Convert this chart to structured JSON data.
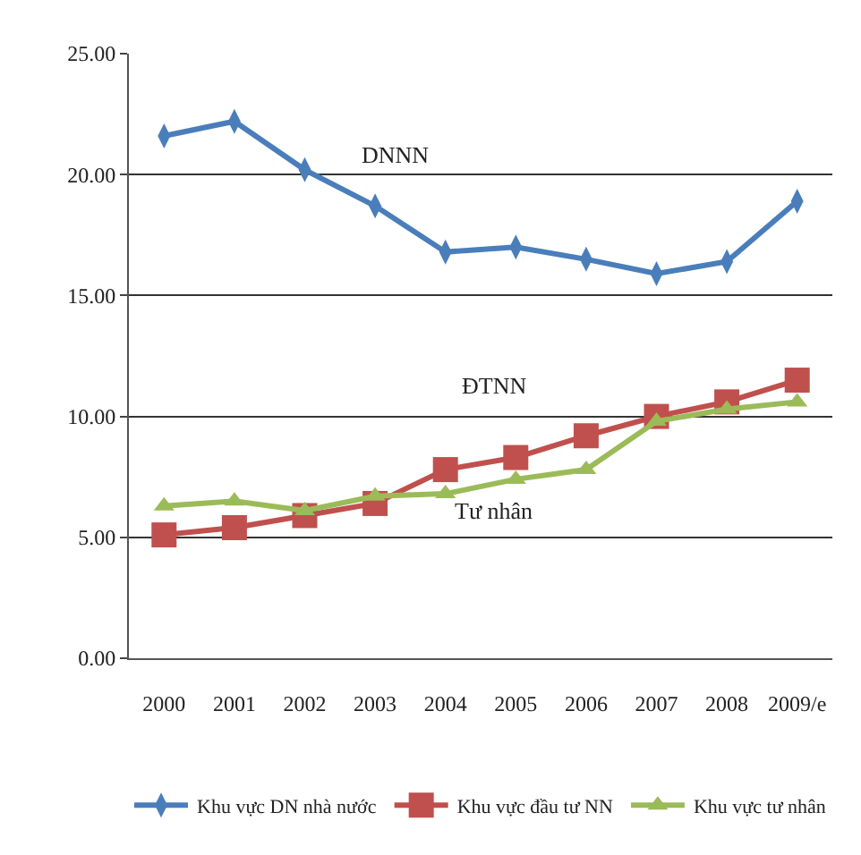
{
  "chart_data": {
    "type": "line",
    "categories": [
      "2000",
      "2001",
      "2002",
      "2003",
      "2004",
      "2005",
      "2006",
      "2007",
      "2008",
      "2009/e"
    ],
    "series": [
      {
        "name": "Khu vực DN nhà nước",
        "color": "#4a7ebb",
        "marker": "diamond",
        "values": [
          21.6,
          22.2,
          20.2,
          18.7,
          16.8,
          17.0,
          16.5,
          15.9,
          16.4,
          18.9
        ]
      },
      {
        "name": "Khu vực đầu tư NN",
        "color": "#c0504d",
        "marker": "square",
        "values": [
          5.1,
          5.4,
          5.9,
          6.4,
          7.8,
          8.3,
          9.2,
          10.0,
          10.6,
          11.5
        ]
      },
      {
        "name": "Khu vực tư nhân",
        "color": "#9bbb59",
        "marker": "triangle",
        "values": [
          6.3,
          6.5,
          6.1,
          6.7,
          6.8,
          7.4,
          7.8,
          9.8,
          10.3,
          10.6
        ]
      }
    ],
    "ylim": [
      0,
      25
    ],
    "yticks": [
      {
        "value": 0,
        "label": "0.00"
      },
      {
        "value": 5,
        "label": "5.00"
      },
      {
        "value": 10,
        "label": "10.00"
      },
      {
        "value": 15,
        "label": "15.00"
      },
      {
        "value": 20,
        "label": "20.00"
      },
      {
        "value": 25,
        "label": "25.00"
      }
    ],
    "grid": "y",
    "legend": "bottom",
    "line_style": "solid",
    "annotations": [
      "DNNN",
      "ĐTNN",
      "Tư nhân"
    ]
  }
}
